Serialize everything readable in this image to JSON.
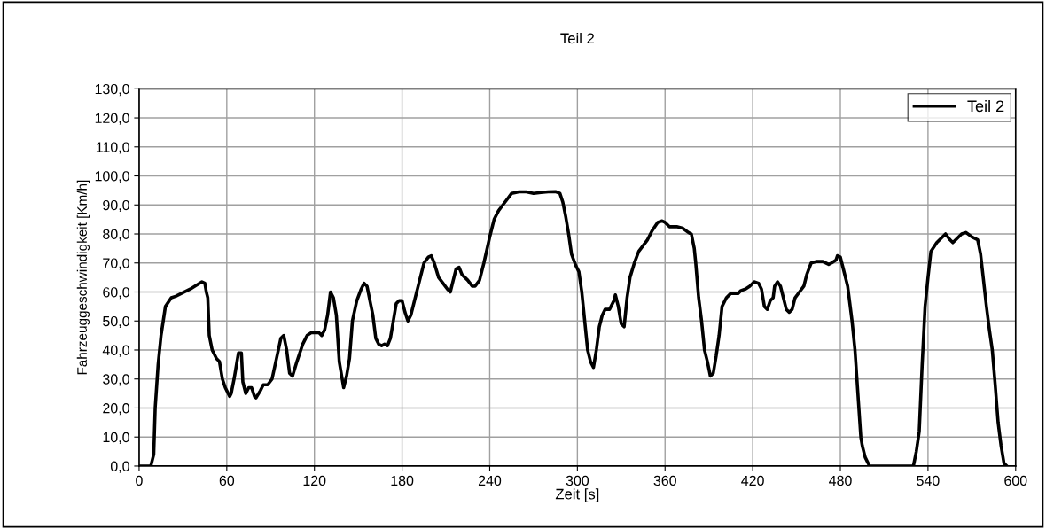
{
  "chart_data": {
    "type": "line",
    "title": "Teil 2",
    "xlabel": "Zeit [s]",
    "ylabel": "Fahrzeuggeschwindigkeit [Km/h]",
    "xlim": [
      0,
      600
    ],
    "xticks": [
      0,
      60,
      120,
      180,
      240,
      300,
      360,
      420,
      480,
      540,
      600
    ],
    "ylim": [
      0,
      130
    ],
    "yticks": [
      {
        "value": 0,
        "label": "0,0"
      },
      {
        "value": 10,
        "label": "10,0"
      },
      {
        "value": 20,
        "label": "20,0"
      },
      {
        "value": 30,
        "label": "30,0"
      },
      {
        "value": 40,
        "label": "40,0"
      },
      {
        "value": 50,
        "label": "50,0"
      },
      {
        "value": 60,
        "label": "60,0"
      },
      {
        "value": 70,
        "label": "70,0"
      },
      {
        "value": 80,
        "label": "80,0"
      },
      {
        "value": 90,
        "label": "90,0"
      },
      {
        "value": 100,
        "label": "100,0"
      },
      {
        "value": 110,
        "label": "110,0"
      },
      {
        "value": 120,
        "label": "120,0"
      },
      {
        "value": 130,
        "label": "130,0"
      }
    ],
    "grid": true,
    "legend": "top right",
    "marker": "none",
    "line_style": "solid",
    "series": [
      {
        "name": "Teil 2",
        "color": "#000000",
        "x": [
          0,
          8,
          10,
          11,
          13,
          15,
          18,
          22,
          25,
          35,
          43,
          45,
          46,
          47,
          48,
          50,
          53,
          55,
          57,
          59,
          62,
          63,
          65,
          67,
          68,
          70,
          71,
          73,
          75,
          77,
          79,
          80,
          83,
          85,
          88,
          91,
          94,
          97,
          99,
          101,
          103,
          105,
          108,
          112,
          115,
          118,
          123,
          125,
          127,
          129,
          131,
          133,
          135,
          137,
          139,
          140,
          142,
          144,
          146,
          149,
          152,
          154,
          156,
          158,
          160,
          162,
          164,
          166,
          168,
          170,
          172,
          174,
          176,
          178,
          180,
          182,
          184,
          186,
          189,
          192,
          195,
          198,
          200,
          202,
          205,
          208,
          211,
          213,
          215,
          217,
          219,
          221,
          225,
          228,
          230,
          233,
          236,
          240,
          243,
          246,
          249,
          252,
          255,
          260,
          265,
          270,
          275,
          280,
          285,
          288,
          290,
          292,
          294,
          296,
          299,
          301,
          303,
          305,
          307,
          309,
          311,
          313,
          315,
          317,
          319,
          322,
          325,
          326,
          328,
          330,
          332,
          334,
          336,
          339,
          342,
          345,
          348,
          351,
          355,
          358,
          360,
          363,
          368,
          372,
          376,
          378,
          380,
          381,
          383,
          385,
          387,
          389,
          391,
          393,
          395,
          397,
          399,
          402,
          405,
          410,
          412,
          415,
          418,
          421,
          424,
          426,
          428,
          430,
          432,
          434,
          435,
          437,
          439,
          441,
          443,
          445,
          447,
          449,
          452,
          455,
          457,
          460,
          464,
          468,
          472,
          474,
          477,
          478,
          480,
          482,
          485,
          488,
          490,
          492,
          494,
          495,
          497,
          500,
          530,
          532,
          534,
          536,
          538,
          540,
          542,
          546,
          550,
          552,
          555,
          557,
          560,
          563,
          566,
          570,
          574,
          576,
          578,
          580,
          582,
          584,
          586,
          588,
          590,
          592,
          594
        ],
        "values": [
          0,
          0,
          4,
          20,
          35,
          45,
          55,
          58,
          58.5,
          61,
          63.5,
          63,
          60,
          58,
          45,
          40,
          37,
          36,
          30,
          27,
          24,
          25,
          30,
          36,
          39,
          39,
          29,
          25,
          27,
          27,
          24,
          23.5,
          26,
          28,
          28,
          30,
          37,
          44,
          45,
          40,
          32,
          31,
          36,
          42,
          45,
          46,
          46,
          45,
          47,
          52,
          60,
          58,
          52,
          36,
          30,
          27,
          31,
          37,
          50,
          57,
          61,
          63,
          62,
          57,
          52,
          44,
          42,
          41.5,
          42,
          41.5,
          44,
          50,
          56,
          57,
          57,
          53,
          50,
          52,
          58,
          64,
          70,
          72,
          72.5,
          70,
          65,
          63,
          61,
          60,
          64,
          68,
          68.5,
          66,
          64,
          62,
          62,
          64,
          70,
          79,
          85,
          88,
          90,
          92,
          94,
          94.5,
          94.5,
          94,
          94.3,
          94.5,
          94.6,
          94,
          91,
          86,
          80,
          73,
          69,
          67,
          60,
          50,
          40,
          36,
          34,
          40,
          48,
          52,
          54,
          54,
          57,
          59,
          55,
          49,
          48,
          58,
          65,
          70,
          74,
          76,
          78,
          81,
          84,
          84.5,
          84,
          82.5,
          82.5,
          82,
          80.5,
          80,
          75,
          70,
          58,
          50,
          40,
          36,
          31,
          32,
          38,
          45,
          55,
          58,
          59.5,
          59.5,
          60.5,
          61,
          62,
          63.5,
          63,
          61,
          55,
          54,
          57,
          58,
          62,
          63.5,
          62,
          58,
          54,
          53,
          54,
          58,
          60,
          62,
          66,
          70,
          70.5,
          70.5,
          69.5,
          70,
          71,
          72.5,
          72,
          68,
          62,
          50,
          40,
          25,
          10,
          7,
          3,
          0,
          0,
          5,
          12,
          35,
          55,
          65,
          74,
          77,
          79,
          80,
          78,
          77,
          78.5,
          80,
          80.5,
          79,
          78,
          73,
          64,
          55,
          47,
          40,
          28,
          15,
          7,
          1,
          0
        ]
      }
    ]
  }
}
